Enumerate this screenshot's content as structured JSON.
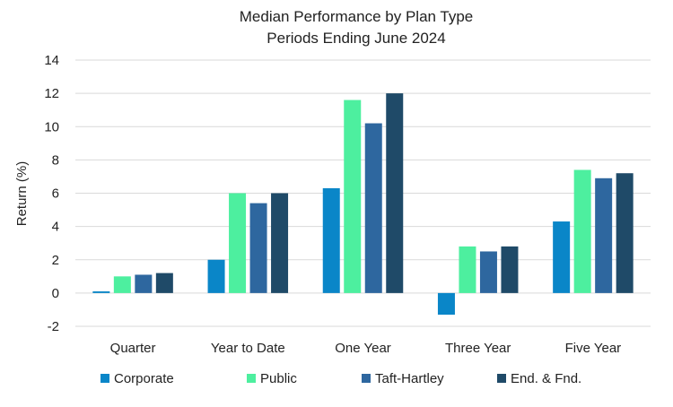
{
  "chart_data": {
    "type": "bar",
    "title": "Median Performance by Plan Type",
    "subtitle": "Periods Ending June 2024",
    "xlabel": "",
    "ylabel": "Return (%)",
    "ylim": [
      -2,
      14
    ],
    "yticks": [
      -2,
      0,
      2,
      4,
      6,
      8,
      10,
      12,
      14
    ],
    "grid": true,
    "legend_position": "bottom",
    "categories": [
      "Quarter",
      "Year to Date",
      "One Year",
      "Three Year",
      "Five Year"
    ],
    "series": [
      {
        "name": "Corporate",
        "color": "#0a86c8",
        "values": [
          0.1,
          2.0,
          6.3,
          -1.3,
          4.3
        ]
      },
      {
        "name": "Public",
        "color": "#4def9f",
        "values": [
          1.0,
          6.0,
          11.6,
          2.8,
          7.4
        ]
      },
      {
        "name": "Taft-Hartley",
        "color": "#2e679f",
        "values": [
          1.1,
          5.4,
          10.2,
          2.5,
          6.9
        ]
      },
      {
        "name": "End. & Fnd.",
        "color": "#1f4a68",
        "values": [
          1.2,
          6.0,
          12.0,
          2.8,
          7.2
        ]
      }
    ]
  }
}
